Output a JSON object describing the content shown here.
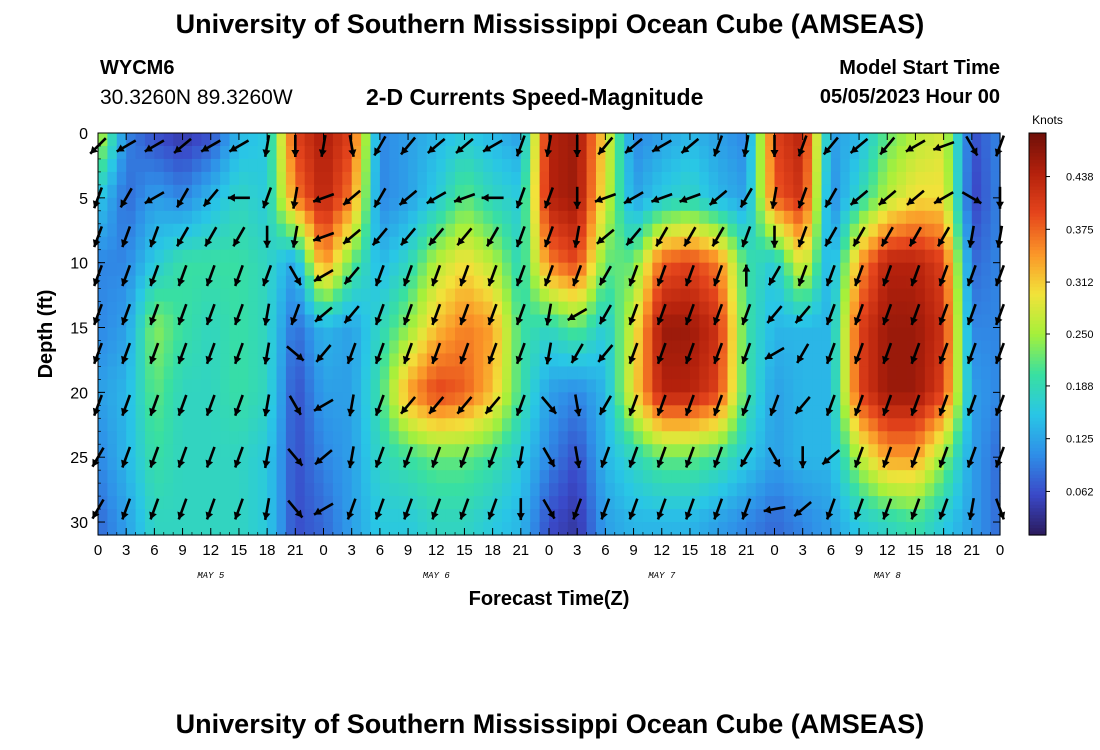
{
  "page": {
    "title_top": "University of Southern Mississippi Ocean Cube (AMSEAS)",
    "title_bottom": "University of Southern Mississippi Ocean Cube (AMSEAS)",
    "station": "WYCM6",
    "coordinates": "30.3260N  89.3260W",
    "subtitle": "2-D Currents Speed-Magnitude",
    "model_start_label": "Model Start Time",
    "model_start_value": "05/05/2023 Hour 00"
  },
  "chart_data": {
    "type": "heatmap",
    "title": "2-D Currents Speed-Magnitude",
    "xlabel": "Forecast Time(Z)",
    "ylabel": "Depth (ft)",
    "x_ticks": [
      "0",
      "3",
      "6",
      "9",
      "12",
      "15",
      "18",
      "21",
      "0",
      "3",
      "6",
      "9",
      "12",
      "15",
      "18",
      "21",
      "0",
      "3",
      "6",
      "9",
      "12",
      "15",
      "18",
      "21",
      "0",
      "3",
      "6",
      "9",
      "12",
      "15",
      "18",
      "21",
      "0"
    ],
    "x_range_hours": [
      0,
      96
    ],
    "day_labels": [
      {
        "label": "MAY 5",
        "hour": 12
      },
      {
        "label": "MAY 6",
        "hour": 36
      },
      {
        "label": "MAY 7",
        "hour": 60
      },
      {
        "label": "MAY 8",
        "hour": 84
      }
    ],
    "y_ticks": [
      0,
      5,
      10,
      15,
      20,
      25,
      30
    ],
    "ylim": [
      0,
      31
    ],
    "y_inverted": true,
    "colorbar": {
      "label": "Knots",
      "ticks": [
        0.062,
        0.125,
        0.188,
        0.25,
        0.312,
        0.375,
        0.438
      ],
      "tick_labels": [
        "0.062",
        "0.125",
        "0.188",
        "0.250",
        "0.312",
        "0.375",
        "0.438"
      ],
      "range": [
        0.01,
        0.49
      ],
      "colormap": [
        "#2b1a5c",
        "#3a49c8",
        "#2f8fe8",
        "#29c6e6",
        "#39e0a0",
        "#a6f03a",
        "#f2e23a",
        "#fb9528",
        "#e5451c",
        "#b4210c",
        "#6e0f08"
      ]
    },
    "speed_grid": {
      "x_hours": [
        0,
        3,
        6,
        9,
        12,
        15,
        18,
        21,
        24,
        27,
        30,
        33,
        36,
        39,
        42,
        45,
        48,
        51,
        54,
        57,
        60,
        63,
        66,
        69,
        72,
        75,
        78,
        81,
        84,
        87,
        90,
        93,
        96
      ],
      "y_depths": [
        0,
        5,
        10,
        15,
        20,
        25,
        30
      ],
      "values": [
        [
          0.28,
          0.1,
          0.06,
          0.04,
          0.06,
          0.14,
          0.16,
          0.4,
          0.45,
          0.4,
          0.1,
          0.12,
          0.14,
          0.16,
          0.14,
          0.12,
          0.44,
          0.46,
          0.3,
          0.1,
          0.12,
          0.14,
          0.12,
          0.1,
          0.4,
          0.44,
          0.12,
          0.14,
          0.22,
          0.26,
          0.28,
          0.06,
          0.1
        ],
        [
          0.16,
          0.08,
          0.12,
          0.1,
          0.14,
          0.18,
          0.16,
          0.36,
          0.44,
          0.36,
          0.1,
          0.12,
          0.16,
          0.22,
          0.18,
          0.16,
          0.44,
          0.46,
          0.28,
          0.12,
          0.16,
          0.18,
          0.14,
          0.12,
          0.38,
          0.42,
          0.1,
          0.18,
          0.26,
          0.3,
          0.3,
          0.05,
          0.1
        ],
        [
          0.1,
          0.1,
          0.16,
          0.2,
          0.2,
          0.2,
          0.18,
          0.12,
          0.36,
          0.22,
          0.14,
          0.18,
          0.26,
          0.3,
          0.26,
          0.18,
          0.36,
          0.4,
          0.22,
          0.22,
          0.38,
          0.4,
          0.36,
          0.2,
          0.16,
          0.3,
          0.12,
          0.34,
          0.44,
          0.44,
          0.4,
          0.08,
          0.1
        ],
        [
          0.1,
          0.12,
          0.24,
          0.2,
          0.18,
          0.2,
          0.18,
          0.08,
          0.14,
          0.12,
          0.18,
          0.24,
          0.32,
          0.36,
          0.34,
          0.2,
          0.18,
          0.22,
          0.16,
          0.28,
          0.46,
          0.46,
          0.42,
          0.2,
          0.14,
          0.14,
          0.14,
          0.4,
          0.46,
          0.46,
          0.42,
          0.1,
          0.1
        ],
        [
          0.12,
          0.14,
          0.22,
          0.18,
          0.18,
          0.2,
          0.18,
          0.06,
          0.12,
          0.12,
          0.2,
          0.34,
          0.4,
          0.38,
          0.32,
          0.2,
          0.12,
          0.1,
          0.14,
          0.3,
          0.44,
          0.44,
          0.4,
          0.2,
          0.12,
          0.14,
          0.14,
          0.4,
          0.46,
          0.46,
          0.4,
          0.12,
          0.1
        ],
        [
          0.1,
          0.14,
          0.2,
          0.18,
          0.18,
          0.18,
          0.16,
          0.06,
          0.1,
          0.12,
          0.18,
          0.2,
          0.22,
          0.22,
          0.2,
          0.16,
          0.1,
          0.06,
          0.14,
          0.18,
          0.22,
          0.22,
          0.2,
          0.16,
          0.12,
          0.14,
          0.14,
          0.26,
          0.34,
          0.34,
          0.24,
          0.12,
          0.08
        ],
        [
          0.08,
          0.12,
          0.18,
          0.18,
          0.18,
          0.18,
          0.16,
          0.06,
          0.08,
          0.12,
          0.16,
          0.16,
          0.18,
          0.18,
          0.16,
          0.14,
          0.06,
          0.04,
          0.12,
          0.14,
          0.14,
          0.14,
          0.12,
          0.1,
          0.08,
          0.1,
          0.12,
          0.16,
          0.18,
          0.2,
          0.16,
          0.12,
          0.08
        ]
      ]
    },
    "vector_grid": {
      "depths": [
        1,
        5,
        8,
        11,
        14,
        17,
        21,
        25,
        29
      ],
      "direction_deg": [
        [
          225,
          240,
          240,
          230,
          240,
          240,
          190,
          180,
          190,
          170,
          210,
          220,
          230,
          230,
          240,
          200,
          190,
          180,
          220,
          230,
          240,
          230,
          200,
          190,
          180,
          200,
          220,
          230,
          220,
          240,
          250,
          150,
          200
        ],
        [
          200,
          210,
          240,
          210,
          220,
          270,
          200,
          190,
          250,
          230,
          210,
          230,
          240,
          250,
          270,
          200,
          200,
          180,
          250,
          240,
          250,
          250,
          230,
          210,
          190,
          200,
          210,
          230,
          230,
          230,
          240,
          120,
          180
        ],
        [
          200,
          200,
          200,
          210,
          210,
          210,
          180,
          190,
          250,
          230,
          220,
          220,
          220,
          220,
          210,
          200,
          200,
          190,
          230,
          220,
          210,
          210,
          210,
          200,
          180,
          200,
          210,
          210,
          210,
          210,
          210,
          190,
          190
        ],
        [
          200,
          200,
          200,
          200,
          200,
          200,
          200,
          150,
          240,
          220,
          200,
          200,
          200,
          200,
          200,
          200,
          200,
          200,
          210,
          200,
          200,
          200,
          200,
          0,
          210,
          200,
          200,
          200,
          200,
          200,
          200,
          200,
          200
        ],
        [
          200,
          200,
          200,
          200,
          200,
          200,
          190,
          200,
          230,
          220,
          200,
          200,
          200,
          200,
          200,
          200,
          190,
          240,
          210,
          200,
          200,
          200,
          200,
          200,
          220,
          220,
          200,
          200,
          200,
          200,
          200,
          200,
          200
        ],
        [
          200,
          200,
          200,
          200,
          200,
          200,
          190,
          130,
          220,
          200,
          200,
          200,
          200,
          200,
          200,
          200,
          190,
          210,
          220,
          200,
          200,
          200,
          200,
          200,
          240,
          210,
          200,
          200,
          200,
          200,
          200,
          200,
          200
        ],
        [
          200,
          200,
          200,
          200,
          200,
          200,
          190,
          150,
          240,
          190,
          200,
          220,
          220,
          220,
          220,
          200,
          140,
          170,
          210,
          200,
          200,
          200,
          200,
          200,
          200,
          220,
          200,
          200,
          200,
          200,
          200,
          200,
          200
        ],
        [
          210,
          200,
          200,
          200,
          200,
          200,
          190,
          140,
          230,
          190,
          200,
          200,
          200,
          200,
          200,
          190,
          150,
          170,
          200,
          200,
          200,
          200,
          200,
          210,
          150,
          180,
          230,
          200,
          200,
          200,
          200,
          200,
          200
        ],
        [
          210,
          200,
          200,
          200,
          200,
          200,
          190,
          140,
          240,
          200,
          200,
          200,
          200,
          200,
          200,
          180,
          150,
          200,
          200,
          200,
          200,
          200,
          200,
          200,
          260,
          230,
          200,
          200,
          200,
          200,
          200,
          190,
          160
        ]
      ]
    }
  }
}
